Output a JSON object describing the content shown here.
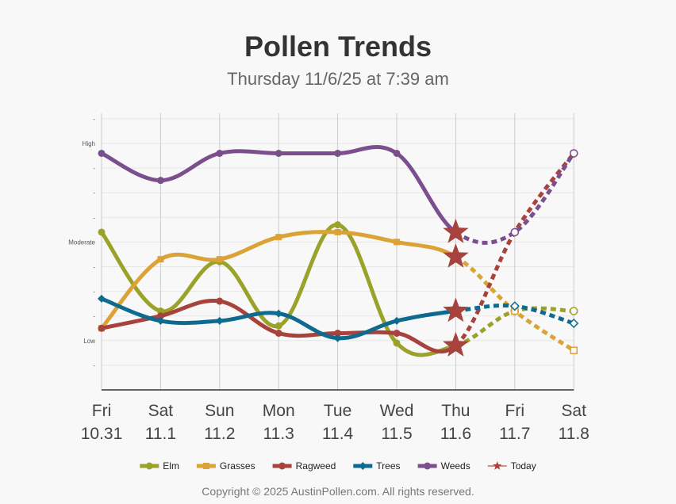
{
  "chart_data": {
    "type": "line",
    "title": "Pollen Trends",
    "subtitle": "Thursday 11/6/25 at 7:39 am",
    "xlabel": "",
    "ylabel": "",
    "categories_day": [
      "Fri",
      "Sat",
      "Sun",
      "Mon",
      "Tue",
      "Wed",
      "Thu",
      "Fri",
      "Sat"
    ],
    "categories_date": [
      "10.31",
      "11.1",
      "11.2",
      "11.3",
      "11.4",
      "11.5",
      "11.6",
      "11.7",
      "11.8"
    ],
    "ylim": [
      0,
      11
    ],
    "y_ticks": [
      {
        "value": 1,
        "label": "-"
      },
      {
        "value": 2,
        "label": "Low"
      },
      {
        "value": 3,
        "label": "-"
      },
      {
        "value": 4,
        "label": "-"
      },
      {
        "value": 5,
        "label": "-"
      },
      {
        "value": 6,
        "label": "Moderate"
      },
      {
        "value": 7,
        "label": "-"
      },
      {
        "value": 8,
        "label": "-"
      },
      {
        "value": 9,
        "label": "-"
      },
      {
        "value": 10,
        "label": "High"
      },
      {
        "value": 11,
        "label": "-"
      }
    ],
    "grid": true,
    "today_index": 6,
    "legend_position": "bottom",
    "series": [
      {
        "name": "Elm",
        "color": "#9aa22a",
        "marker": "circle",
        "values": [
          6.4,
          3.2,
          5.2,
          2.6,
          6.7,
          1.9,
          1.8,
          3.2,
          3.2
        ]
      },
      {
        "name": "Grasses",
        "color": "#dba236",
        "marker": "square",
        "values": [
          2.5,
          5.3,
          5.3,
          6.2,
          6.4,
          6.0,
          5.4,
          3.2,
          1.6
        ]
      },
      {
        "name": "Ragweed",
        "color": "#a8423c",
        "marker": "circle",
        "values": [
          2.5,
          3.0,
          3.6,
          2.3,
          2.3,
          2.3,
          1.8,
          6.4,
          9.6
        ]
      },
      {
        "name": "Trees",
        "color": "#0e6a8e",
        "marker": "diamond",
        "values": [
          3.7,
          2.8,
          2.8,
          3.1,
          2.1,
          2.8,
          3.2,
          3.4,
          2.7
        ]
      },
      {
        "name": "Weeds",
        "color": "#7b4f8e",
        "marker": "circle",
        "values": [
          9.6,
          8.5,
          9.6,
          9.6,
          9.6,
          9.6,
          6.4,
          6.4,
          9.6
        ]
      }
    ],
    "today_marker": {
      "name": "Today",
      "color": "#a8423c",
      "marker": "star"
    }
  },
  "footer": {
    "copyright": "Copyright © 2025 AustinPollen.com.  All rights reserved."
  }
}
